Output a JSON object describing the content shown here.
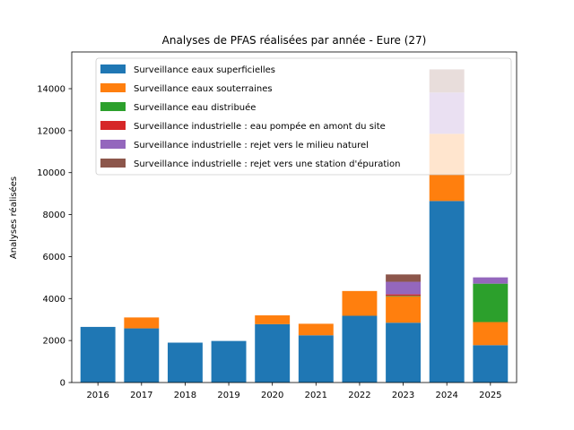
{
  "chart_data": {
    "type": "bar",
    "stacked": true,
    "title": "Analyses de PFAS réalisées par année - Eure (27)",
    "xlabel": "",
    "ylabel": "Analyses réalisées",
    "ylim": [
      0,
      15750
    ],
    "yticks": [
      0,
      2000,
      4000,
      6000,
      8000,
      10000,
      12000,
      14000
    ],
    "yticks_labels": [
      "0",
      "2000",
      "4000",
      "6000",
      "8000",
      "10000",
      "12000",
      "14000"
    ],
    "categories": [
      "2016",
      "2017",
      "2018",
      "2019",
      "2020",
      "2021",
      "2022",
      "2023",
      "2024",
      "2025"
    ],
    "grid": false,
    "legend_position": "top-left",
    "series": [
      {
        "name": "Surveillance eaux superficielles",
        "color": "#1f77b4",
        "values": [
          2650,
          2580,
          1900,
          1980,
          2780,
          2250,
          3180,
          2850,
          8650,
          1780
        ]
      },
      {
        "name": "Surveillance eaux souterraines",
        "color": "#ff7f0e",
        "values": [
          0,
          520,
          0,
          0,
          420,
          550,
          1180,
          1250,
          3200,
          1100
        ]
      },
      {
        "name": "Surveillance eau distribuée",
        "color": "#2ca02c",
        "values": [
          0,
          0,
          0,
          0,
          0,
          0,
          0,
          30,
          0,
          1830
        ]
      },
      {
        "name": "Surveillance industrielle : eau pompée en amont du site",
        "color": "#d62728",
        "values": [
          0,
          0,
          0,
          0,
          0,
          0,
          0,
          70,
          0,
          0
        ]
      },
      {
        "name": "Surveillance industrielle : rejet vers le milieu naturel",
        "color": "#9467bd",
        "values": [
          0,
          0,
          0,
          0,
          0,
          0,
          0,
          600,
          1970,
          300
        ]
      },
      {
        "name": "Surveillance industrielle : rejet vers une station d'épuration",
        "color": "#8c564b",
        "values": [
          0,
          0,
          0,
          0,
          0,
          0,
          0,
          350,
          1100,
          0
        ]
      }
    ]
  }
}
